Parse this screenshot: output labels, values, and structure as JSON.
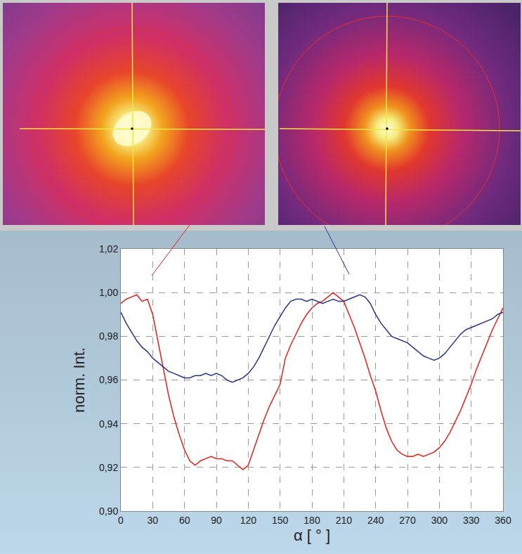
{
  "chart_data": {
    "type": "line",
    "x_label": "α [ ° ]",
    "y_label": "norm. Int.",
    "x": [
      0,
      5,
      10,
      15,
      20,
      25,
      30,
      35,
      40,
      45,
      50,
      55,
      60,
      65,
      70,
      75,
      80,
      85,
      90,
      95,
      100,
      105,
      110,
      115,
      120,
      125,
      130,
      135,
      140,
      145,
      150,
      155,
      160,
      165,
      170,
      175,
      180,
      185,
      190,
      195,
      200,
      205,
      210,
      215,
      220,
      225,
      230,
      235,
      240,
      245,
      250,
      255,
      260,
      265,
      270,
      275,
      280,
      285,
      290,
      295,
      300,
      305,
      310,
      315,
      320,
      325,
      330,
      335,
      340,
      345,
      350,
      355,
      360
    ],
    "series": [
      {
        "color": "#e32119",
        "values": [
          0.995,
          0.997,
          0.998,
          0.999,
          0.996,
          0.997,
          0.99,
          0.978,
          0.965,
          0.953,
          0.943,
          0.935,
          0.928,
          0.923,
          0.921,
          0.923,
          0.924,
          0.925,
          0.924,
          0.924,
          0.923,
          0.923,
          0.921,
          0.919,
          0.921,
          0.928,
          0.935,
          0.942,
          0.948,
          0.953,
          0.958,
          0.97,
          0.976,
          0.981,
          0.986,
          0.99,
          0.993,
          0.995,
          0.996,
          0.998,
          1.0,
          0.998,
          0.996,
          0.99,
          0.984,
          0.977,
          0.97,
          0.962,
          0.955,
          0.946,
          0.938,
          0.932,
          0.928,
          0.926,
          0.925,
          0.925,
          0.926,
          0.925,
          0.926,
          0.927,
          0.929,
          0.932,
          0.936,
          0.941,
          0.946,
          0.952,
          0.958,
          0.965,
          0.971,
          0.977,
          0.983,
          0.988,
          0.993
        ]
      },
      {
        "color": "#27348b",
        "values": [
          0.991,
          0.986,
          0.982,
          0.978,
          0.975,
          0.973,
          0.97,
          0.968,
          0.966,
          0.964,
          0.963,
          0.962,
          0.961,
          0.961,
          0.962,
          0.962,
          0.963,
          0.962,
          0.963,
          0.962,
          0.96,
          0.959,
          0.96,
          0.961,
          0.963,
          0.966,
          0.97,
          0.975,
          0.98,
          0.985,
          0.989,
          0.993,
          0.996,
          0.997,
          0.997,
          0.996,
          0.997,
          0.996,
          0.995,
          0.996,
          0.997,
          0.996,
          0.996,
          0.997,
          0.998,
          0.999,
          0.998,
          0.995,
          0.99,
          0.986,
          0.983,
          0.98,
          0.979,
          0.978,
          0.977,
          0.975,
          0.973,
          0.971,
          0.97,
          0.969,
          0.97,
          0.972,
          0.975,
          0.978,
          0.981,
          0.983,
          0.984,
          0.985,
          0.986,
          0.987,
          0.988,
          0.99,
          0.991
        ]
      }
    ],
    "xlim": [
      0,
      360
    ],
    "xticks": [
      0,
      30,
      60,
      90,
      120,
      150,
      180,
      210,
      240,
      270,
      300,
      330,
      360
    ],
    "ylim": [
      0.9,
      1.02
    ],
    "yticks": [
      {
        "value": 0.9,
        "label": "0,90"
      },
      {
        "value": 0.92,
        "label": "0,92"
      },
      {
        "value": 0.94,
        "label": "0,94"
      },
      {
        "value": 0.96,
        "label": "0,96"
      },
      {
        "value": 0.98,
        "label": "0,98"
      },
      {
        "value": 1.0,
        "label": "1,00"
      },
      {
        "value": 1.02,
        "label": "1,02"
      }
    ],
    "grid": true
  }
}
